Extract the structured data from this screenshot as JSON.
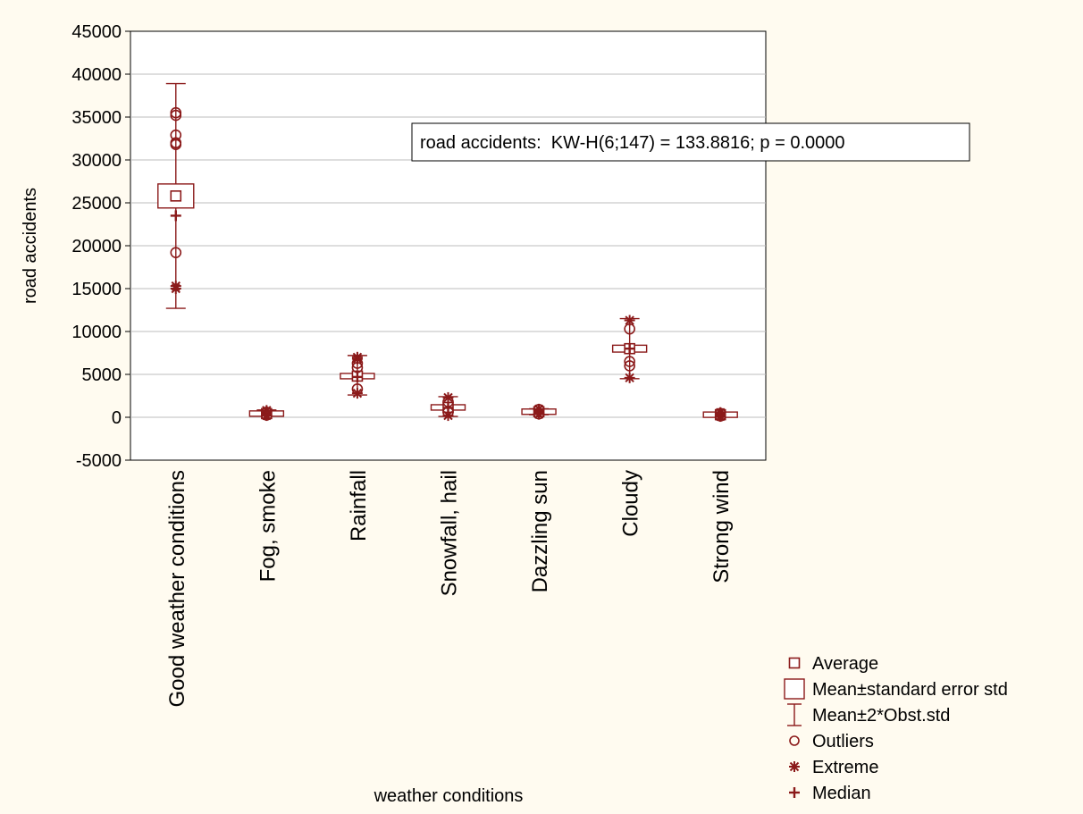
{
  "chart_data": {
    "type": "box",
    "xlabel": "weather conditions",
    "ylabel": "road accidents",
    "ylim": [
      -5000,
      45000
    ],
    "yticks": [
      -5000,
      0,
      5000,
      10000,
      15000,
      20000,
      25000,
      30000,
      35000,
      40000,
      45000
    ],
    "ytick_labels": [
      "-5000",
      "0",
      "5000",
      "10000",
      "15000",
      "20000",
      "25000",
      "30000",
      "35000",
      "40000",
      "45000"
    ],
    "grid": true,
    "annotation": "road accidents:  KW-H(6;147) = 133.8816; p = 0.0000",
    "color": "#8b1a1a",
    "categories": [
      "Good weather conditions",
      "Fog, smoke",
      "Rainfall",
      "Snowfall, hail",
      "Dazzling sun",
      "Cloudy",
      "Strong wind"
    ],
    "groups": [
      {
        "mean": 25800,
        "se_low": 24400,
        "se_high": 27200,
        "whisker_low": 12700,
        "whisker_high": 38900,
        "median": 23500,
        "outliers": [
          35500,
          35200,
          32900,
          32000,
          31800,
          19200
        ],
        "extremes": [
          15300,
          15000
        ]
      },
      {
        "mean": 430,
        "se_low": 350,
        "se_high": 510,
        "whisker_low": 150,
        "whisker_high": 850,
        "median": 400,
        "outliers": [
          600,
          250
        ],
        "extremes": [
          800,
          200
        ]
      },
      {
        "mean": 4800,
        "se_low": 4500,
        "se_high": 5100,
        "whisker_low": 2600,
        "whisker_high": 7200,
        "median": 4700,
        "outliers": [
          6300,
          5800,
          3300
        ],
        "extremes": [
          7000,
          6800,
          2800
        ]
      },
      {
        "mean": 1150,
        "se_low": 1000,
        "se_high": 1300,
        "whisker_low": 100,
        "whisker_high": 2400,
        "median": 1100,
        "outliers": [
          1800,
          600
        ],
        "extremes": [
          2300,
          200
        ]
      },
      {
        "mean": 650,
        "se_low": 580,
        "se_high": 720,
        "whisker_low": 300,
        "whisker_high": 1000,
        "median": 620,
        "outliers": [
          900,
          400
        ],
        "extremes": [
          950,
          350
        ]
      },
      {
        "mean": 8000,
        "se_low": 7600,
        "se_high": 8400,
        "whisker_low": 4500,
        "whisker_high": 11500,
        "median": 8000,
        "outliers": [
          10300,
          6500,
          6000
        ],
        "extremes": [
          11300,
          4600
        ]
      },
      {
        "mean": 300,
        "se_low": 250,
        "se_high": 350,
        "whisker_low": 50,
        "whisker_high": 600,
        "median": 300,
        "outliers": [
          450,
          150
        ],
        "extremes": [
          550,
          100
        ]
      }
    ],
    "legend": {
      "position": "bottom-right",
      "items": [
        {
          "symbol": "small-square",
          "label": "Average"
        },
        {
          "symbol": "box",
          "label": "Mean±standard error std"
        },
        {
          "symbol": "whisker",
          "label": " Mean±2*Obst.std"
        },
        {
          "symbol": "circle",
          "label": "Outliers"
        },
        {
          "symbol": "asterisk",
          "label": "Extreme"
        },
        {
          "symbol": "plus",
          "label": "Median"
        }
      ]
    }
  }
}
